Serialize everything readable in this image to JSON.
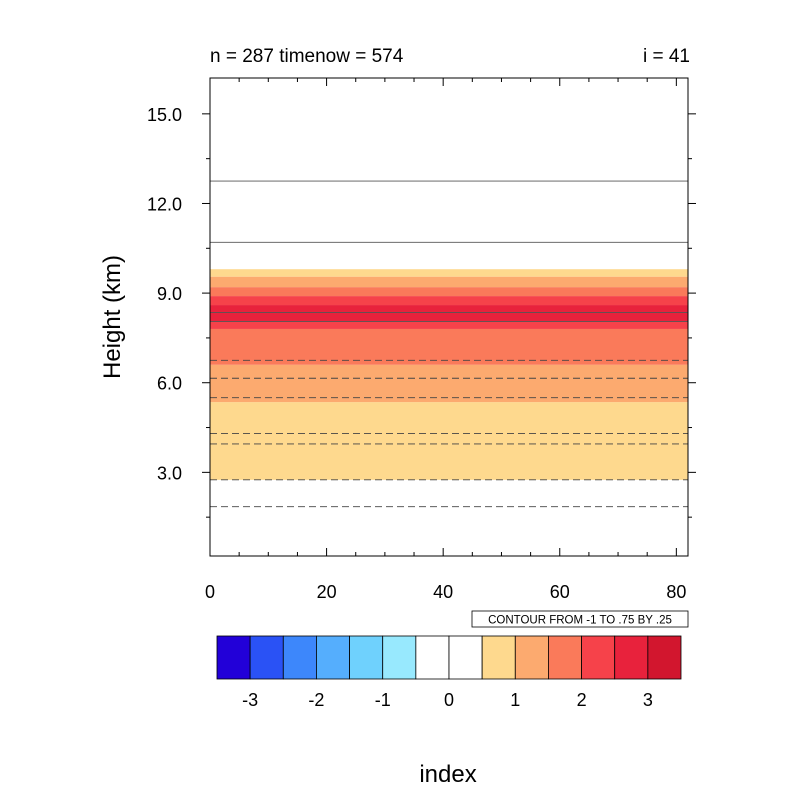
{
  "chart_data": {
    "type": "contour",
    "title_left": "n = 287 timenow = 574",
    "title_right": "i = 41",
    "xlabel": "index",
    "ylabel": "Height (km)",
    "xlim": [
      0,
      82
    ],
    "ylim": [
      0.2,
      16.2
    ],
    "x_ticks": [
      0,
      20,
      40,
      60,
      80
    ],
    "x_tick_labels": [
      "0",
      "20",
      "40",
      "60",
      "80"
    ],
    "y_ticks": [
      3,
      6,
      9,
      12,
      15
    ],
    "y_tick_labels": [
      "3.0",
      "6.0",
      "9.0",
      "12.0",
      "15.0"
    ],
    "fill_bands": [
      {
        "from": 2.75,
        "to": 5.35,
        "color": "#fed98e"
      },
      {
        "from": 5.35,
        "to": 6.6,
        "color": "#fcaa6f"
      },
      {
        "from": 6.6,
        "to": 7.8,
        "color": "#fa7a5a"
      },
      {
        "from": 7.8,
        "to": 8.05,
        "color": "#f6424a"
      },
      {
        "from": 8.05,
        "to": 8.6,
        "color": "#e8223c"
      },
      {
        "from": 8.6,
        "to": 8.9,
        "color": "#f6424a"
      },
      {
        "from": 8.9,
        "to": 9.2,
        "color": "#fa7a5a"
      },
      {
        "from": 9.2,
        "to": 9.55,
        "color": "#fcaa6f"
      },
      {
        "from": 9.55,
        "to": 9.8,
        "color": "#fed98e"
      }
    ],
    "contour_lines": [
      {
        "y": 1.85,
        "style": "dashed"
      },
      {
        "y": 2.75,
        "style": "dashed"
      },
      {
        "y": 3.95,
        "style": "dashed"
      },
      {
        "y": 4.3,
        "style": "dashed"
      },
      {
        "y": 5.5,
        "style": "dashed"
      },
      {
        "y": 6.15,
        "style": "dashed"
      },
      {
        "y": 6.75,
        "style": "dashed"
      },
      {
        "y": 8.05,
        "style": "solid"
      },
      {
        "y": 8.35,
        "style": "solid"
      },
      {
        "y": 10.7,
        "style": "solid"
      },
      {
        "y": 12.75,
        "style": "solid"
      }
    ],
    "info_label": "CONTOUR FROM -1 TO .75 BY .25",
    "colorbar": {
      "colors": [
        "#2200d8",
        "#2a52f5",
        "#3d87fb",
        "#55aefd",
        "#6fd1fd",
        "#98e9fe",
        "#ffffff",
        "#ffffff",
        "#fed98e",
        "#fcaa6f",
        "#fa7a5a",
        "#f6424a",
        "#e8223c",
        "#d2162e"
      ],
      "labels": [
        "-3",
        "-2",
        "-1",
        "0",
        "1",
        "2",
        "3"
      ]
    }
  }
}
